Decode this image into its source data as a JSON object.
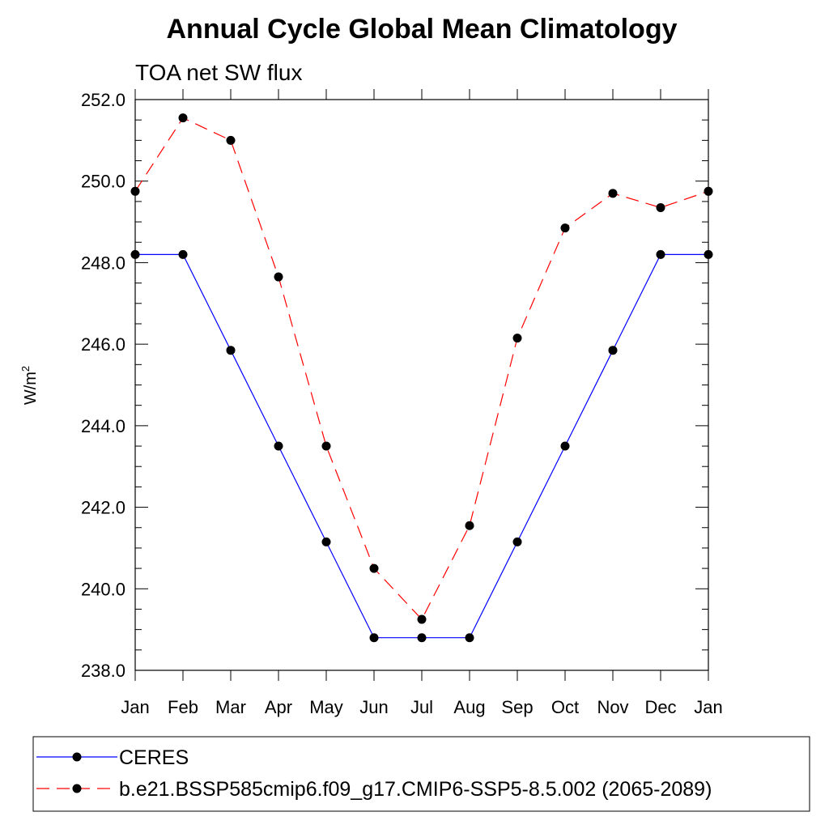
{
  "chart_data": {
    "type": "line",
    "title": "Annual Cycle Global Mean Climatology",
    "subtitle": "TOA net SW flux",
    "ylabel": "W/m",
    "ylabel_sup": "2",
    "xlabel": "",
    "categories": [
      "Jan",
      "Feb",
      "Mar",
      "Apr",
      "May",
      "Jun",
      "Jul",
      "Aug",
      "Sep",
      "Oct",
      "Nov",
      "Dec",
      "Jan"
    ],
    "ylim": [
      238.0,
      252.0
    ],
    "yticks": [
      "252.0",
      "250.0",
      "248.0",
      "246.0",
      "244.0",
      "242.0",
      "240.0",
      "238.0"
    ],
    "grid": false,
    "legend_position": "bottom",
    "series": [
      {
        "name": "CERES",
        "color": "#0000ff",
        "dash": "solid",
        "marker": "circle",
        "values": [
          248.2,
          248.2,
          245.85,
          243.5,
          241.15,
          238.8,
          238.8,
          238.8,
          241.15,
          243.5,
          245.85,
          248.2,
          248.2
        ]
      },
      {
        "name": "b.e21.BSSP585cmip6.f09_g17.CMIP6-SSP5-8.5.002 (2065-2089)",
        "color": "#ff0000",
        "dash": "dashed",
        "marker": "circle",
        "values": [
          249.75,
          251.55,
          251.0,
          247.65,
          243.5,
          240.5,
          239.25,
          241.55,
          246.15,
          248.85,
          249.7,
          249.35,
          249.75
        ]
      }
    ]
  }
}
